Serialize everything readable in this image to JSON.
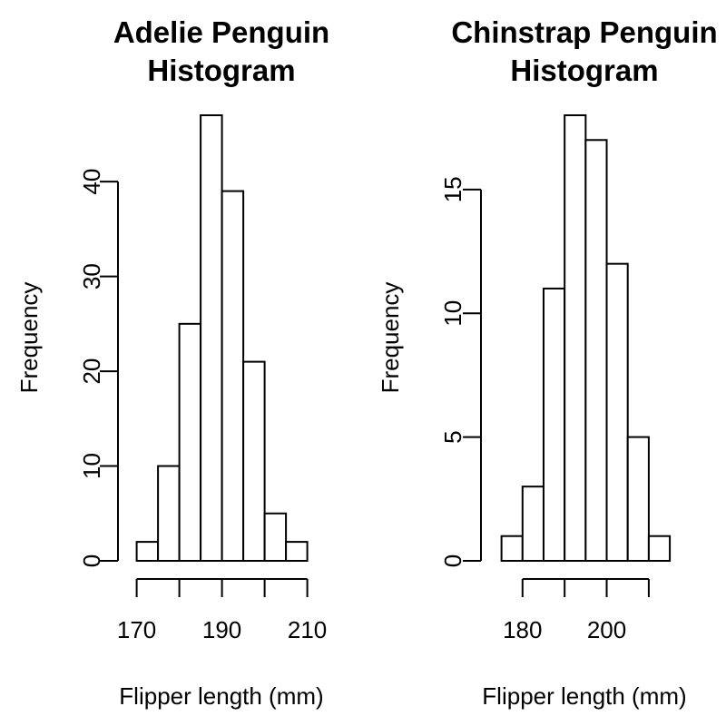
{
  "chart_data": [
    {
      "type": "bar",
      "title_lines": [
        "Adelie Penguin",
        "Histogram"
      ],
      "xlabel": "Flipper length (mm)",
      "ylabel": "Frequency",
      "bin_edges": [
        170,
        175,
        180,
        185,
        190,
        195,
        200,
        205,
        210
      ],
      "values": [
        2,
        10,
        25,
        47,
        39,
        21,
        5,
        2
      ],
      "xlim": [
        170,
        210
      ],
      "xticks": [
        170,
        180,
        190,
        200,
        210
      ],
      "xtick_labels": [
        "170",
        "",
        "190",
        "",
        "210"
      ],
      "ylim": [
        0,
        47
      ],
      "yticks": [
        0,
        10,
        20,
        30,
        40
      ],
      "grid": false
    },
    {
      "type": "bar",
      "title_lines": [
        "Chinstrap Penguin",
        "Histogram"
      ],
      "xlabel": "Flipper length (mm)",
      "ylabel": "Frequency",
      "bin_edges": [
        175,
        180,
        185,
        190,
        195,
        200,
        205,
        210,
        215
      ],
      "values": [
        1,
        3,
        11,
        18,
        17,
        12,
        5,
        1
      ],
      "xlim": [
        180,
        210
      ],
      "xticks": [
        180,
        190,
        200,
        210
      ],
      "xtick_labels": [
        "180",
        "",
        "200",
        ""
      ],
      "ylim": [
        0,
        18
      ],
      "yticks": [
        0,
        5,
        10,
        15
      ],
      "grid": false
    }
  ]
}
